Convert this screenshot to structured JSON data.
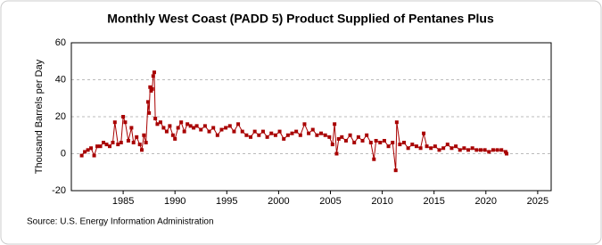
{
  "chart_data": {
    "type": "line",
    "title": "Monthly West Coast (PADD 5) Product Supplied of Pentanes Plus",
    "y_label": "Thousand Barrels per Day",
    "source": "Source: U.S. Energy Information Administration",
    "x": [
      1981.0,
      1981.3,
      1981.6,
      1981.9,
      1982.2,
      1982.5,
      1982.8,
      1983.1,
      1983.4,
      1983.7,
      1984.0,
      1984.2,
      1984.5,
      1984.8,
      1985.0,
      1985.2,
      1985.5,
      1985.8,
      1986.0,
      1986.3,
      1986.6,
      1986.8,
      1987.0,
      1987.2,
      1987.4,
      1987.5,
      1987.6,
      1987.7,
      1987.8,
      1987.9,
      1988.0,
      1988.1,
      1988.3,
      1988.6,
      1988.9,
      1989.2,
      1989.5,
      1989.8,
      1990.0,
      1990.3,
      1990.6,
      1990.9,
      1991.2,
      1991.5,
      1991.8,
      1992.1,
      1992.5,
      1992.9,
      1993.3,
      1993.7,
      1994.1,
      1994.5,
      1994.9,
      1995.3,
      1995.7,
      1996.1,
      1996.5,
      1996.9,
      1997.3,
      1997.7,
      1998.1,
      1998.5,
      1998.9,
      1999.3,
      1999.7,
      2000.1,
      2000.5,
      2000.9,
      2001.3,
      2001.7,
      2002.1,
      2002.5,
      2002.9,
      2003.3,
      2003.7,
      2004.1,
      2004.5,
      2004.9,
      2005.2,
      2005.4,
      2005.6,
      2005.8,
      2006.1,
      2006.5,
      2006.9,
      2007.3,
      2007.7,
      2008.1,
      2008.5,
      2008.9,
      2009.2,
      2009.4,
      2009.8,
      2010.2,
      2010.6,
      2011.0,
      2011.3,
      2011.4,
      2011.7,
      2012.1,
      2012.5,
      2012.9,
      2013.3,
      2013.7,
      2014.0,
      2014.3,
      2014.7,
      2015.1,
      2015.5,
      2015.9,
      2016.3,
      2016.7,
      2017.1,
      2017.5,
      2017.9,
      2018.3,
      2018.7,
      2019.1,
      2019.5,
      2019.9,
      2020.3,
      2020.7,
      2021.1,
      2021.5,
      2021.9,
      2022.0
    ],
    "series": [
      {
        "color": "#a80000",
        "values": [
          -1,
          1,
          2,
          3,
          -1,
          4,
          4,
          6,
          5,
          4,
          6,
          17,
          5,
          6,
          20,
          17,
          7,
          14,
          6,
          9,
          5,
          2,
          10,
          6,
          28,
          22,
          36,
          34,
          35,
          42,
          44,
          19,
          16,
          17,
          14,
          12,
          15,
          10,
          8,
          14,
          17,
          12,
          16,
          15,
          14,
          15,
          13,
          15,
          12,
          14,
          10,
          13,
          14,
          15,
          12,
          16,
          12,
          10,
          9,
          12,
          10,
          12,
          9,
          11,
          10,
          12,
          8,
          10,
          11,
          12,
          10,
          16,
          11,
          13,
          10,
          11,
          10,
          9,
          5,
          16,
          0,
          8,
          9,
          7,
          10,
          6,
          9,
          7,
          10,
          6,
          -3,
          7,
          6,
          7,
          4,
          6,
          -9,
          17,
          5,
          6,
          3,
          5,
          4,
          3,
          11,
          4,
          3,
          4,
          2,
          3,
          5,
          3,
          4,
          2,
          3,
          2,
          3,
          2,
          2,
          2,
          1,
          2,
          2,
          2,
          1,
          0
        ]
      }
    ],
    "xlim": [
      1980,
      2026.3
    ],
    "xticks": [
      1985,
      1990,
      1995,
      2000,
      2005,
      2010,
      2015,
      2020,
      2025
    ],
    "ylim": [
      -20,
      60
    ],
    "yticks": [
      -20,
      0,
      20,
      40,
      60
    ],
    "grid": true
  }
}
